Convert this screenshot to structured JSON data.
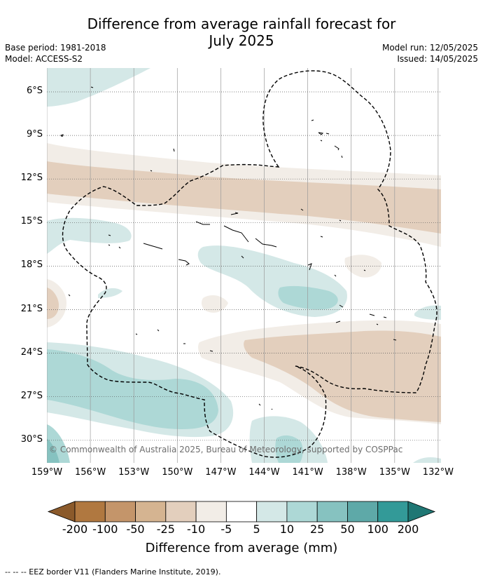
{
  "header": {
    "title_line1": "Difference from average rainfall forecast for",
    "title_line2": "July 2025",
    "base_period": "Base period: 1981-2018",
    "model": "Model: ACCESS-S2",
    "model_run": "Model run: 12/05/2025",
    "issued": "Issued: 14/05/2025"
  },
  "map": {
    "lat_labels": [
      "6°S",
      "9°S",
      "12°S",
      "15°S",
      "18°S",
      "21°S",
      "24°S",
      "27°S",
      "30°S"
    ],
    "lon_labels": [
      "159°W",
      "156°W",
      "153°W",
      "150°W",
      "147°W",
      "144°W",
      "141°W",
      "138°W",
      "135°W",
      "132°W"
    ],
    "copyright": "© Commonwealth of Australia 2025, Bureau of Meteorology, supported by COSPPac"
  },
  "colorbar": {
    "ticks": [
      "-200",
      "-100",
      "-50",
      "-25",
      "-10",
      "-5",
      "5",
      "10",
      "25",
      "50",
      "100",
      "200"
    ],
    "colors": [
      "#8b5a2b",
      "#b07840",
      "#c4956a",
      "#d5b491",
      "#e3cfbd",
      "#f2ede7",
      "#ffffff",
      "#d4e8e7",
      "#add8d6",
      "#86c2c0",
      "#5ea9a8",
      "#339a98",
      "#1f7774"
    ],
    "label": "Difference from average (mm)"
  },
  "footnote": "-- -- -- EEZ border V11 (Flanders Marine Institute, 2019)."
}
